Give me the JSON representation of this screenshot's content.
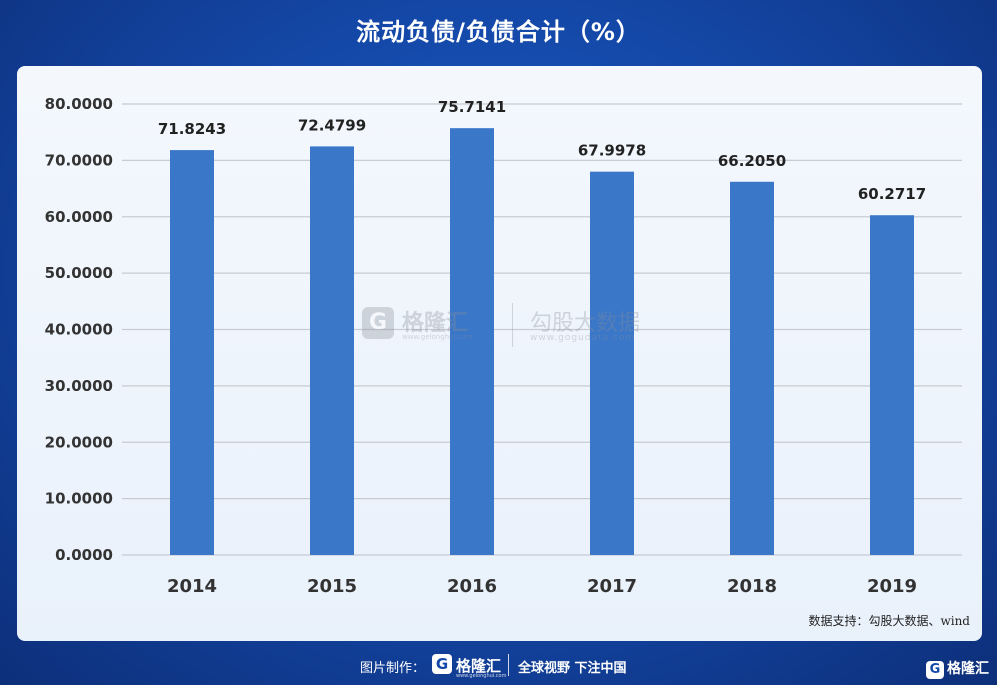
{
  "title": "流动负债/负债合计（%）",
  "source": "数据支持：勾股大数据、wind",
  "watermark": {
    "logo_glyph": "G",
    "name": "格隆汇",
    "url1": "www.gelonghui.com",
    "name2": "勾股大数据",
    "url2": "www.gogudata.com"
  },
  "footer": {
    "made_by": "图片制作：",
    "logo_glyph": "G",
    "brand": "格隆汇",
    "brand_url": "www.gelonghui.com",
    "slogan": "全球视野 下注中国"
  },
  "corner": {
    "logo_glyph": "G",
    "brand": "格隆汇"
  },
  "colors": {
    "bar": "#3a77c8",
    "grid": "#c8ccd2",
    "background": "#1448a8"
  },
  "chart_data": {
    "type": "bar",
    "title": "流动负债/负债合计（%）",
    "categories": [
      "2014",
      "2015",
      "2016",
      "2017",
      "2018",
      "2019"
    ],
    "values": [
      71.8243,
      72.4799,
      75.7141,
      67.9978,
      66.205,
      60.2717
    ],
    "value_labels": [
      "71.8243",
      "72.4799",
      "75.7141",
      "67.9978",
      "66.2050",
      "60.2717"
    ],
    "yticks": [
      "0.0000",
      "10.0000",
      "20.0000",
      "30.0000",
      "40.0000",
      "50.0000",
      "60.0000",
      "70.0000",
      "80.0000"
    ],
    "ylim": [
      0,
      80
    ],
    "grid": true
  }
}
